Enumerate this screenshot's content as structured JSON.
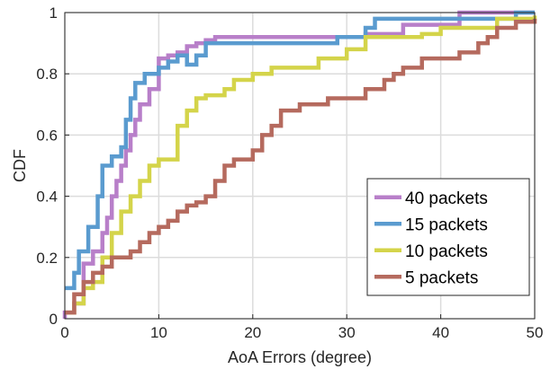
{
  "chart_data": {
    "type": "line",
    "step": true,
    "xlabel": "AoA Errors (degree)",
    "ylabel": "CDF",
    "xlim": [
      0,
      50
    ],
    "ylim": [
      0,
      1
    ],
    "x_ticks": [
      0,
      10,
      20,
      30,
      40,
      50
    ],
    "y_ticks": [
      0,
      0.2,
      0.4,
      0.6,
      0.8,
      1
    ],
    "y_tick_labels": [
      "0",
      "0.2",
      "0.4",
      "0.6",
      "0.8",
      "1"
    ],
    "grid": true,
    "legend_position": "bottom-right",
    "series": [
      {
        "name": "40 packets",
        "color": "#b87fc9",
        "points": [
          [
            0,
            0
          ],
          [
            0,
            0.02
          ],
          [
            1,
            0.05
          ],
          [
            2,
            0.18
          ],
          [
            3,
            0.22
          ],
          [
            4,
            0.28
          ],
          [
            4.5,
            0.33
          ],
          [
            5,
            0.4
          ],
          [
            5.5,
            0.45
          ],
          [
            6,
            0.5
          ],
          [
            6.5,
            0.55
          ],
          [
            7,
            0.6
          ],
          [
            7.5,
            0.65
          ],
          [
            8,
            0.7
          ],
          [
            9,
            0.75
          ],
          [
            10,
            0.85
          ],
          [
            11,
            0.86
          ],
          [
            12,
            0.87
          ],
          [
            13,
            0.89
          ],
          [
            14,
            0.9
          ],
          [
            15,
            0.91
          ],
          [
            16,
            0.92
          ],
          [
            32,
            0.93
          ],
          [
            36,
            0.96
          ],
          [
            42,
            1
          ],
          [
            50,
            1
          ]
        ]
      },
      {
        "name": "15 packets",
        "color": "#5a9bcf",
        "points": [
          [
            0,
            0.1
          ],
          [
            1,
            0.15
          ],
          [
            1.5,
            0.22
          ],
          [
            2.5,
            0.3
          ],
          [
            3.5,
            0.4
          ],
          [
            4,
            0.5
          ],
          [
            5,
            0.53
          ],
          [
            6,
            0.56
          ],
          [
            6.5,
            0.65
          ],
          [
            7,
            0.72
          ],
          [
            7.5,
            0.77
          ],
          [
            8.5,
            0.8
          ],
          [
            10,
            0.82
          ],
          [
            11,
            0.84
          ],
          [
            12,
            0.86
          ],
          [
            13,
            0.83
          ],
          [
            14,
            0.86
          ],
          [
            15,
            0.9
          ],
          [
            29,
            0.92
          ],
          [
            32,
            0.95
          ],
          [
            33,
            0.98
          ],
          [
            48,
            1
          ],
          [
            50,
            1
          ]
        ]
      },
      {
        "name": "10 packets",
        "color": "#d4d44a",
        "points": [
          [
            0,
            0.02
          ],
          [
            1,
            0.05
          ],
          [
            2,
            0.1
          ],
          [
            3,
            0.12
          ],
          [
            4,
            0.2
          ],
          [
            5,
            0.28
          ],
          [
            6,
            0.35
          ],
          [
            7,
            0.4
          ],
          [
            8,
            0.45
          ],
          [
            9,
            0.5
          ],
          [
            10,
            0.52
          ],
          [
            12,
            0.63
          ],
          [
            13,
            0.68
          ],
          [
            14,
            0.72
          ],
          [
            15,
            0.73
          ],
          [
            17,
            0.75
          ],
          [
            18,
            0.78
          ],
          [
            20,
            0.8
          ],
          [
            22,
            0.82
          ],
          [
            27,
            0.85
          ],
          [
            30,
            0.88
          ],
          [
            32,
            0.92
          ],
          [
            38,
            0.93
          ],
          [
            40,
            0.95
          ],
          [
            46,
            0.98
          ],
          [
            50,
            0.99
          ]
        ]
      },
      {
        "name": "5 packets",
        "color": "#b56a5e",
        "points": [
          [
            0,
            0.02
          ],
          [
            1,
            0.08
          ],
          [
            2,
            0.12
          ],
          [
            3,
            0.15
          ],
          [
            4,
            0.17
          ],
          [
            5,
            0.2
          ],
          [
            7,
            0.22
          ],
          [
            8,
            0.25
          ],
          [
            9,
            0.28
          ],
          [
            10,
            0.3
          ],
          [
            11,
            0.32
          ],
          [
            12,
            0.35
          ],
          [
            13,
            0.37
          ],
          [
            14,
            0.38
          ],
          [
            15,
            0.4
          ],
          [
            16,
            0.45
          ],
          [
            17,
            0.5
          ],
          [
            18,
            0.52
          ],
          [
            20,
            0.55
          ],
          [
            21,
            0.6
          ],
          [
            22,
            0.63
          ],
          [
            23,
            0.68
          ],
          [
            25,
            0.7
          ],
          [
            28,
            0.72
          ],
          [
            32,
            0.75
          ],
          [
            34,
            0.78
          ],
          [
            35,
            0.8
          ],
          [
            36,
            0.82
          ],
          [
            38,
            0.85
          ],
          [
            42,
            0.87
          ],
          [
            44,
            0.9
          ],
          [
            45,
            0.92
          ],
          [
            46,
            0.95
          ],
          [
            48,
            0.97
          ],
          [
            50,
            0.98
          ]
        ]
      }
    ]
  }
}
